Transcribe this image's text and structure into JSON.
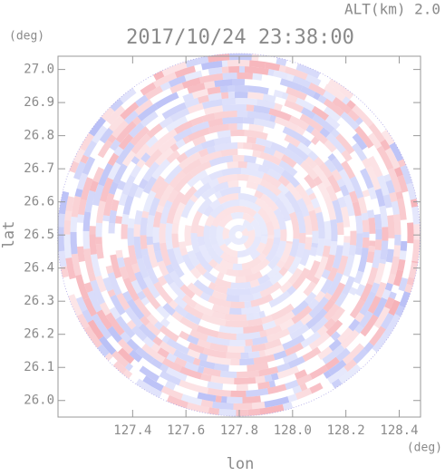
{
  "chart_data": {
    "type": "radar-image",
    "title": "2017/10/24 23:38:00",
    "altitude_label": "ALT(km) 2.0",
    "x_label": "lon",
    "y_label": "lat",
    "x_unit": "(deg)",
    "y_unit": "(deg)",
    "xlim": [
      127.12,
      128.48
    ],
    "ylim": [
      25.95,
      27.04
    ],
    "xticks": [
      127.4,
      127.6,
      127.8,
      {
        "value": 128,
        "label": "128.0"
      },
      128.2,
      128.4
    ],
    "yticks": [
      {
        "value": 26,
        "label": "26.0"
      },
      26.1,
      26.2,
      26.3,
      26.4,
      26.5,
      26.6,
      26.7,
      26.8,
      26.9,
      {
        "value": 27,
        "label": "27.0"
      }
    ],
    "colors": {
      "positive": "#f4a0a8",
      "negative": "#a8b0f4"
    }
  }
}
